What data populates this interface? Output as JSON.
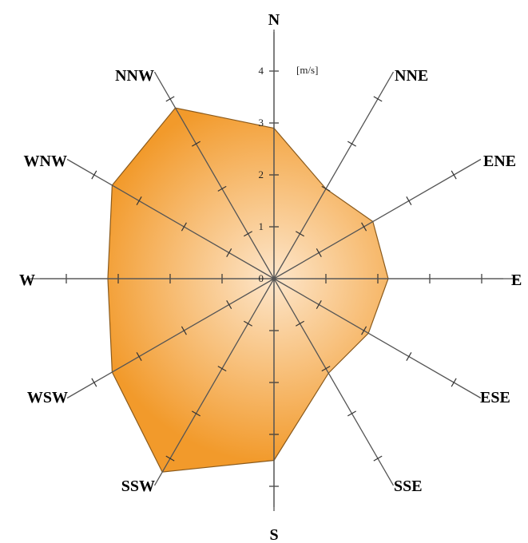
{
  "chart_data": {
    "type": "radar",
    "unit": "[m/s]",
    "directions": [
      "N",
      "NNE",
      "ENE",
      "E",
      "ESE",
      "SSE",
      "S",
      "SSW",
      "WSW",
      "W",
      "WNW",
      "NNW"
    ],
    "values": [
      2.9,
      2.0,
      2.2,
      2.2,
      2.1,
      2.1,
      3.5,
      4.3,
      3.6,
      3.2,
      3.6,
      3.8
    ],
    "radial_ticks": [
      "0",
      "1",
      "2",
      "3",
      "4"
    ],
    "rmax": 4.6,
    "colors": {
      "fill_outer": "#f39a2a",
      "fill_inner": "#fbd9b0",
      "stroke": "#8a5a1c",
      "axis": "#555555"
    }
  }
}
